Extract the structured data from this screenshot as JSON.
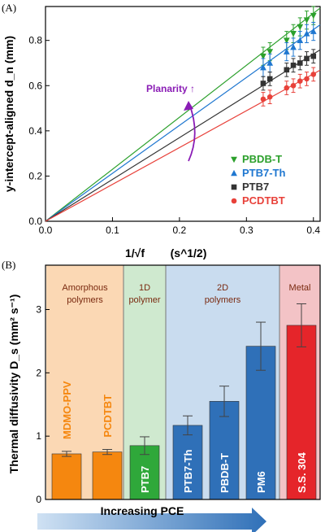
{
  "chart_data": [
    {
      "type": "scatter",
      "panel_label": "(A)",
      "xlabel": "1/√f",
      "xlabel_unit": "(s^1/2)",
      "ylabel": "y-intercept-aligned d_n (mm)",
      "xlim": [
        0.0,
        0.41
      ],
      "ylim": [
        0.0,
        0.95
      ],
      "xticks": [
        "0.0",
        "0.1",
        "0.2",
        "0.3",
        "0.4"
      ],
      "yticks": [
        "0.0",
        "0.2",
        "0.4",
        "0.6",
        "0.8"
      ],
      "legend_position": "bottom-right",
      "annotation": "Planarity ↑",
      "series": [
        {
          "name": "PBDB-T",
          "color": "#2ca02c",
          "marker": "triangle-down",
          "slope": 2.3,
          "x": [
            0.325,
            0.335,
            0.36,
            0.37,
            0.38,
            0.39,
            0.4
          ],
          "y": [
            0.73,
            0.75,
            0.8,
            0.83,
            0.86,
            0.89,
            0.91
          ],
          "err": 0.04
        },
        {
          "name": "PTB7-Th",
          "color": "#1f77d0",
          "marker": "triangle-up",
          "slope": 2.12,
          "x": [
            0.325,
            0.335,
            0.36,
            0.37,
            0.38,
            0.39,
            0.4
          ],
          "y": [
            0.68,
            0.7,
            0.75,
            0.77,
            0.8,
            0.83,
            0.84
          ],
          "err": 0.04
        },
        {
          "name": "PTB7",
          "color": "#333333",
          "marker": "square",
          "slope": 1.85,
          "x": [
            0.325,
            0.335,
            0.36,
            0.37,
            0.38,
            0.39,
            0.4
          ],
          "y": [
            0.61,
            0.63,
            0.67,
            0.69,
            0.7,
            0.72,
            0.73
          ],
          "err": 0.03
        },
        {
          "name": "PCDTBT",
          "color": "#e8413a",
          "marker": "circle",
          "slope": 1.63,
          "x": [
            0.325,
            0.335,
            0.36,
            0.37,
            0.38,
            0.39,
            0.4
          ],
          "y": [
            0.54,
            0.55,
            0.59,
            0.6,
            0.62,
            0.63,
            0.65
          ],
          "err": 0.03
        }
      ]
    },
    {
      "type": "bar",
      "panel_label": "(B)",
      "ylabel": "Thermal diffusivity D_s (mm² s⁻¹)",
      "ylim": [
        0,
        3.7
      ],
      "yticks": [
        "0",
        "1",
        "2",
        "3"
      ],
      "bottom_arrow_label": "Increasing PCE",
      "groups": [
        {
          "label_lines": [
            "Amorphous",
            "polymers"
          ],
          "color": "#fbd8b4",
          "text_color": "#7a2a10",
          "bars": [
            0,
            1
          ]
        },
        {
          "label_lines": [
            "1D",
            "polymer"
          ],
          "color": "#cfe9cf",
          "text_color": "#7a2a10",
          "bars": [
            2
          ]
        },
        {
          "label_lines": [
            "2D",
            "polymers"
          ],
          "color": "#c9dcef",
          "text_color": "#7a2a10",
          "bars": [
            3,
            4,
            5
          ]
        },
        {
          "label_lines": [
            "Metal"
          ],
          "color": "#f3c3c6",
          "text_color": "#7a2a10",
          "bars": [
            6
          ]
        }
      ],
      "categories": [
        "MDMO-PPV",
        "PCDTBT",
        "PTB7",
        "PTB7-Th",
        "PBDB-T",
        "PM6",
        "S.S. 304"
      ],
      "values": [
        0.72,
        0.75,
        0.85,
        1.17,
        1.55,
        2.42,
        2.75
      ],
      "errors": [
        0.04,
        0.04,
        0.14,
        0.15,
        0.24,
        0.38,
        0.34
      ],
      "bar_colors": [
        "#f5870f",
        "#f5870f",
        "#2fa83a",
        "#2f70b8",
        "#2f70b8",
        "#2f70b8",
        "#e5252a"
      ],
      "label_colors": [
        "#f5870f",
        "#f5870f",
        "#ffffff",
        "#ffffff",
        "#ffffff",
        "#ffffff",
        "#ffffff"
      ]
    }
  ]
}
